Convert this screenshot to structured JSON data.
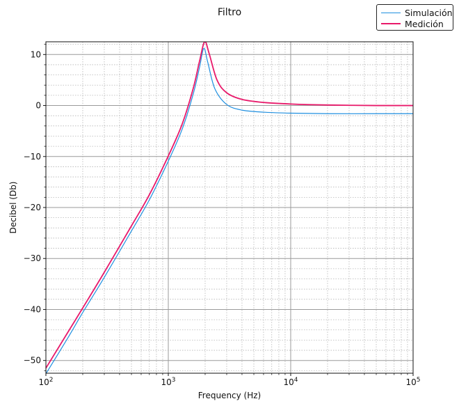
{
  "chart_data": {
    "type": "line",
    "title": "Filtro",
    "xlabel": "Frequency (Hz)",
    "ylabel": "Decibel (Db)",
    "xscale": "log",
    "xlim": [
      100,
      100000
    ],
    "ylim": [
      -52.5,
      12.5
    ],
    "grid": true,
    "legend_position": "top-right",
    "x_ticks": [
      100,
      1000,
      10000,
      100000
    ],
    "x_tick_labels": [
      {
        "base": "10",
        "exp": "2"
      },
      {
        "base": "10",
        "exp": "3"
      },
      {
        "base": "10",
        "exp": "4"
      },
      {
        "base": "10",
        "exp": "5"
      }
    ],
    "y_ticks": [
      10,
      0,
      -10,
      -20,
      -30,
      -40,
      -50
    ],
    "y_tick_labels": [
      "10",
      "0",
      "−10",
      "−20",
      "−30",
      "−40",
      "−50"
    ],
    "series": [
      {
        "name": "Simulación",
        "color": "#1f8fe0",
        "x": [
          100,
          150,
          200,
          300,
          500,
          700,
          1000,
          1300,
          1600,
          1800,
          1950,
          2100,
          2400,
          3000,
          4000,
          6000,
          10000,
          20000,
          50000,
          100000
        ],
        "y": [
          -52.6,
          -45.7,
          -40.6,
          -33.7,
          -24.6,
          -18.5,
          -10.9,
          -4.6,
          2.3,
          7.5,
          11.2,
          8.5,
          3.3,
          0.2,
          -0.9,
          -1.3,
          -1.5,
          -1.6,
          -1.6,
          -1.6
        ]
      },
      {
        "name": "Medición",
        "color": "#e8196a",
        "x": [
          100,
          150,
          200,
          300,
          500,
          700,
          1000,
          1300,
          1600,
          1800,
          1980,
          2150,
          2500,
          3000,
          4000,
          6000,
          10000,
          20000,
          50000,
          100000
        ],
        "y": [
          -51.5,
          -44.6,
          -39.7,
          -32.7,
          -23.6,
          -17.5,
          -9.9,
          -3.6,
          3.4,
          8.7,
          12.5,
          10.3,
          5.0,
          2.5,
          1.2,
          0.6,
          0.3,
          0.1,
          0.0,
          0.0
        ]
      }
    ]
  }
}
